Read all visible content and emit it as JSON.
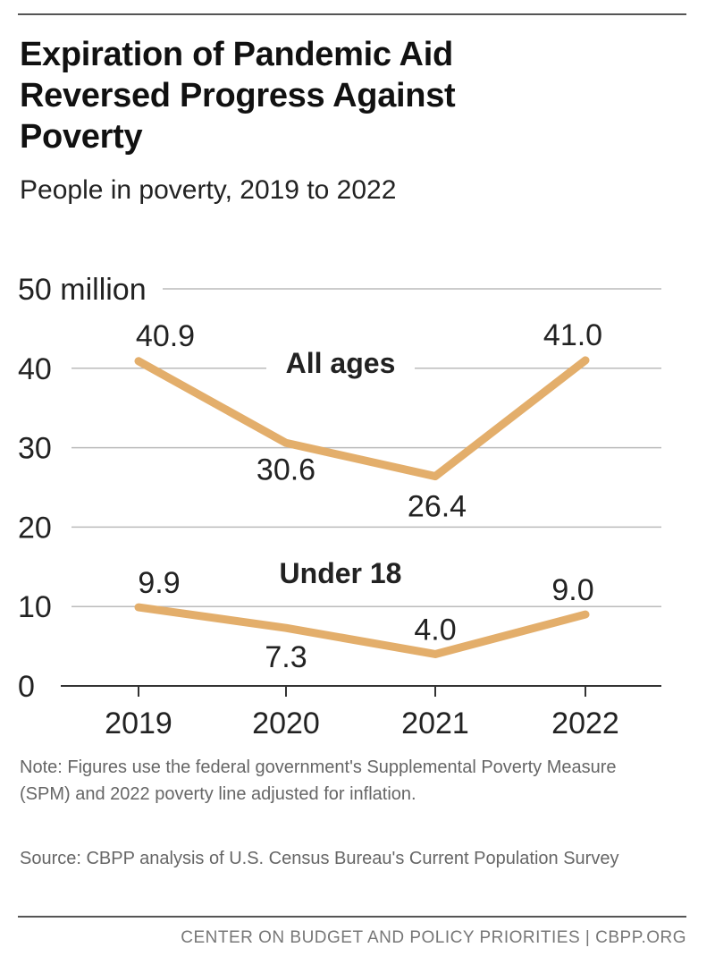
{
  "title": "Expiration of Pandemic Aid Reversed Progress Against Poverty",
  "subtitle": "People in poverty, 2019 to 2022",
  "note": "Note: Figures use the federal government's Supplemental Poverty Measure (SPM) and 2022 poverty line adjusted for inflation.",
  "source": "Source: CBPP analysis of U.S. Census Bureau's Current Population Survey",
  "footer": "CENTER ON BUDGET AND POLICY PRIORITIES | CBPP.ORG",
  "colors": {
    "line": "#E3AE6B",
    "grid": "#bbbbbb",
    "axis": "#333333",
    "text": "#222222"
  },
  "chart_data": {
    "type": "line",
    "x": [
      "2019",
      "2020",
      "2021",
      "2022"
    ],
    "ylim": [
      0,
      50
    ],
    "y_ticks": [
      0,
      10,
      20,
      30,
      40,
      50
    ],
    "y_tick_labels": [
      "0",
      "10",
      "20",
      "30",
      "40",
      "50 million"
    ],
    "grid": true,
    "series": [
      {
        "name": "All ages",
        "values": [
          40.9,
          30.6,
          26.4,
          41.0
        ],
        "labels": [
          "40.9",
          "30.6",
          "26.4",
          "41.0"
        ]
      },
      {
        "name": "Under 18",
        "values": [
          9.9,
          7.3,
          4.0,
          9.0
        ],
        "labels": [
          "9.9",
          "7.3",
          "4.0",
          "9.0"
        ]
      }
    ]
  }
}
